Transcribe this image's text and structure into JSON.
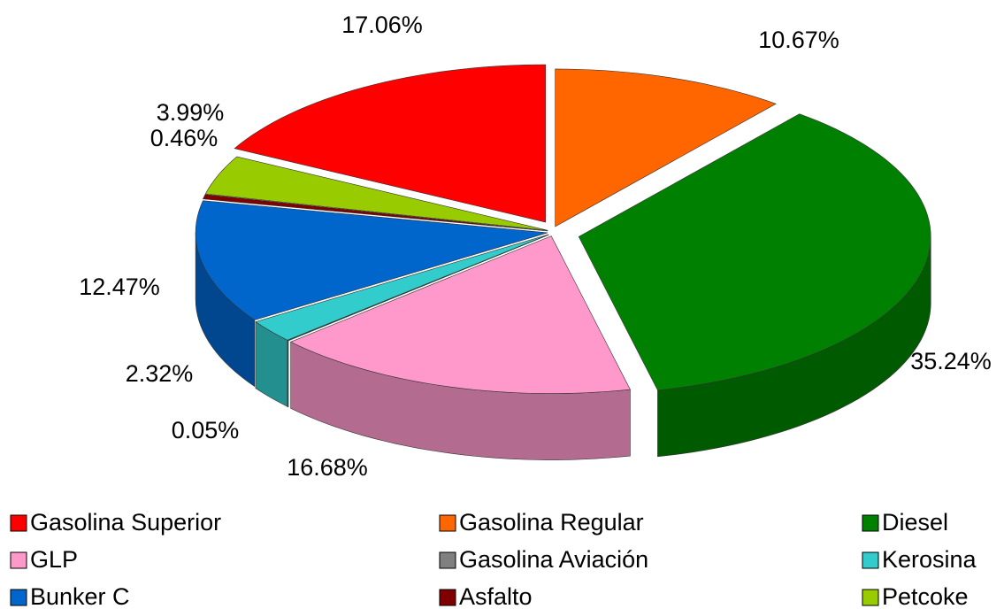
{
  "chart_data": {
    "type": "pie3d",
    "categories": [
      "Gasolina Superior",
      "Gasolina Regular",
      "Diesel",
      "GLP",
      "Gasolina Aviación",
      "Kerosina",
      "Bunker C",
      "Asfalto",
      "Petcoke"
    ],
    "values": [
      17.06,
      10.67,
      35.24,
      16.68,
      0.05,
      2.32,
      12.47,
      0.46,
      3.99
    ],
    "value_labels": [
      "17.06%",
      "10.67%",
      "35.24%",
      "16.68%",
      "0.05%",
      "2.32%",
      "12.47%",
      "0.46%",
      "3.99%"
    ],
    "colors": [
      "#ff0000",
      "#ff6600",
      "#008000",
      "#ff99cc",
      "#808080",
      "#33cccc",
      "#0066cc",
      "#800000",
      "#99cc00"
    ],
    "legend": "bottom"
  }
}
